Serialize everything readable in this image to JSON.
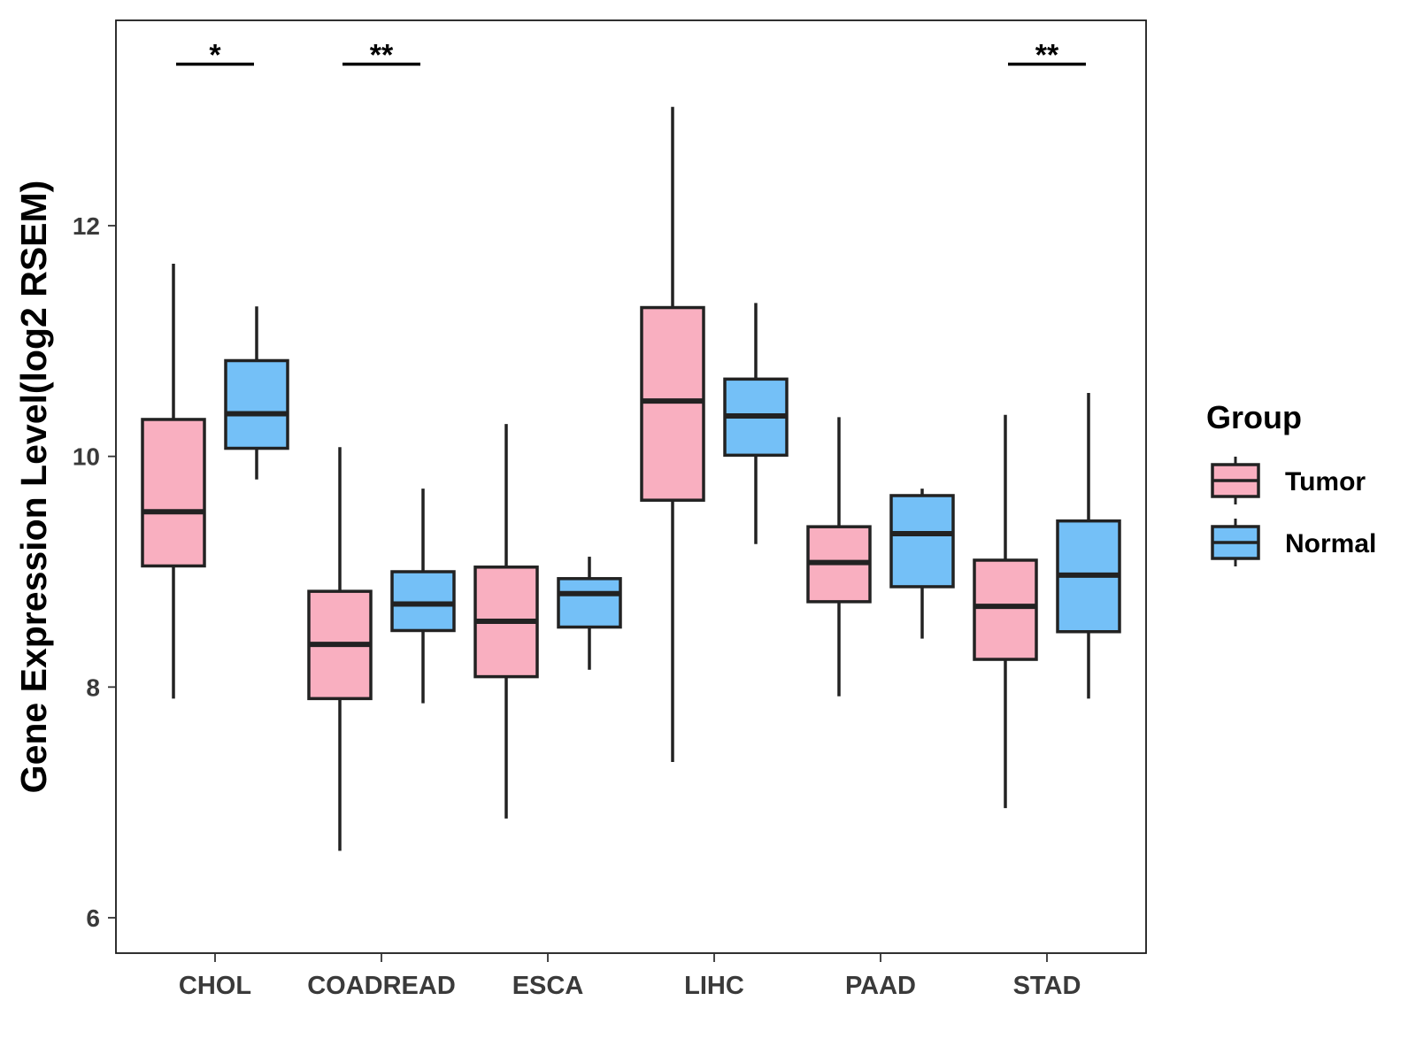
{
  "chart_data": {
    "type": "boxplot",
    "title": "",
    "xlabel": "",
    "ylabel": "Gene Expression Level(log2 RSEM)",
    "ylim": [
      5.7,
      13.8
    ],
    "yticks": [
      6,
      8,
      10,
      12
    ],
    "grid": false,
    "legend_position": "right",
    "categories": [
      "CHOL",
      "COADREAD",
      "ESCA",
      "LIHC",
      "PAAD",
      "STAD"
    ],
    "series": [
      {
        "name": "Tumor",
        "color": "#f9afc0",
        "boxes": [
          {
            "min": 7.9,
            "q1": 9.05,
            "median": 9.52,
            "q3": 10.32,
            "max": 11.67
          },
          {
            "min": 6.58,
            "q1": 7.9,
            "median": 8.37,
            "q3": 8.83,
            "max": 10.08
          },
          {
            "min": 6.86,
            "q1": 8.09,
            "median": 8.57,
            "q3": 9.04,
            "max": 10.28
          },
          {
            "min": 7.35,
            "q1": 9.62,
            "median": 10.48,
            "q3": 11.29,
            "max": 13.03
          },
          {
            "min": 7.92,
            "q1": 8.74,
            "median": 9.08,
            "q3": 9.39,
            "max": 10.34
          },
          {
            "min": 6.95,
            "q1": 8.24,
            "median": 8.7,
            "q3": 9.1,
            "max": 10.36
          }
        ]
      },
      {
        "name": "Normal",
        "color": "#74c0f7",
        "boxes": [
          {
            "min": 9.8,
            "q1": 10.07,
            "median": 10.37,
            "q3": 10.83,
            "max": 11.3
          },
          {
            "min": 7.86,
            "q1": 8.49,
            "median": 8.72,
            "q3": 9.0,
            "max": 9.72
          },
          {
            "min": 8.15,
            "q1": 8.52,
            "median": 8.81,
            "q3": 8.94,
            "max": 9.13
          },
          {
            "min": 9.24,
            "q1": 10.01,
            "median": 10.35,
            "q3": 10.67,
            "max": 11.33
          },
          {
            "min": 8.42,
            "q1": 8.87,
            "median": 9.33,
            "q3": 9.66,
            "max": 9.72
          },
          {
            "min": 7.9,
            "q1": 8.48,
            "median": 8.97,
            "q3": 9.44,
            "max": 10.55
          }
        ]
      }
    ],
    "significance": [
      {
        "category": "CHOL",
        "label": "*",
        "y": 13.4
      },
      {
        "category": "COADREAD",
        "label": "**",
        "y": 13.4
      },
      {
        "category": "STAD",
        "label": "**",
        "y": 13.4
      }
    ],
    "legend": {
      "title": "Group",
      "entries": [
        "Tumor",
        "Normal"
      ]
    }
  }
}
